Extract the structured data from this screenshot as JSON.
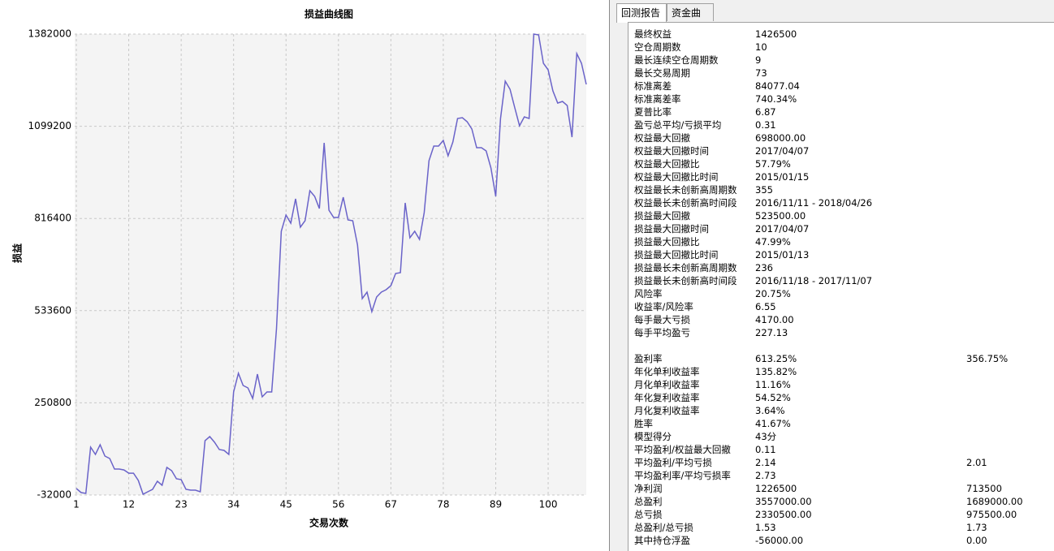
{
  "chart_data": {
    "type": "line",
    "title": "损益曲线图",
    "x_label": "交易次数",
    "y_label": "损益",
    "color": "#6a63c9",
    "grid": true,
    "xlim": [
      1,
      108
    ],
    "xticks": [
      1,
      12,
      23,
      34,
      45,
      56,
      67,
      78,
      89,
      100
    ],
    "ylim": [
      -32000,
      1382000
    ],
    "yticks": [
      -32000,
      250800,
      533600,
      816400,
      1099200,
      1382000
    ],
    "x": [
      1,
      2,
      3,
      4,
      5,
      6,
      7,
      8,
      9,
      10,
      11,
      12,
      13,
      14,
      15,
      16,
      17,
      18,
      19,
      20,
      21,
      22,
      23,
      24,
      25,
      26,
      27,
      28,
      29,
      30,
      31,
      32,
      33,
      34,
      35,
      36,
      37,
      38,
      39,
      40,
      41,
      42,
      43,
      44,
      45,
      46,
      47,
      48,
      49,
      50,
      51,
      52,
      53,
      54,
      55,
      56,
      57,
      58,
      59,
      60,
      61,
      62,
      63,
      64,
      65,
      66,
      67,
      68,
      69,
      70,
      71,
      72,
      73,
      74,
      75,
      76,
      77,
      78,
      79,
      80,
      81,
      82,
      83,
      84,
      85,
      86,
      87,
      88,
      89,
      90,
      91,
      92,
      93,
      94,
      95,
      96,
      97,
      98,
      99,
      100,
      101,
      102,
      103,
      104,
      105,
      106,
      107,
      108
    ],
    "values": [
      -12000,
      -24500,
      -27000,
      115000,
      92500,
      122000,
      87500,
      80000,
      47700,
      47700,
      45000,
      35000,
      35000,
      12800,
      -29500,
      -22000,
      -14600,
      10300,
      -2100,
      52600,
      42700,
      17800,
      15300,
      -14600,
      -17000,
      -17000,
      -22000,
      134800,
      147200,
      129800,
      107400,
      104900,
      92500,
      284100,
      341400,
      304000,
      296600,
      264200,
      338900,
      269200,
      284100,
      284100,
      478300,
      777000,
      826800,
      801900,
      876600,
      789500,
      809400,
      901500,
      884000,
      846700,
      1048400,
      841700,
      819300,
      819300,
      881600,
      811900,
      809400,
      734700,
      570400,
      590400,
      530600,
      575400,
      590400,
      597800,
      610300,
      647600,
      650100,
      864200,
      757100,
      777000,
      752100,
      834300,
      993600,
      1038400,
      1038400,
      1055800,
      1008500,
      1050800,
      1123000,
      1125500,
      1113100,
      1090700,
      1033500,
      1033500,
      1023500,
      971300,
      884000,
      1123000,
      1237500,
      1212700,
      1155500,
      1100700,
      1128100,
      1123000,
      1382000,
      1379500,
      1292400,
      1272400,
      1207700,
      1170400,
      1175400,
      1162900,
      1065800,
      1322300,
      1292400,
      1227700
    ]
  },
  "tabs": [
    "回测报告",
    "资金曲线"
  ],
  "report": {
    "sections": [
      {
        "rows": [
          [
            "最终权益",
            "1426500"
          ],
          [
            "空仓周期数",
            "10"
          ],
          [
            "最长连续空仓周期数",
            "9"
          ],
          [
            "最长交易周期",
            "73"
          ],
          [
            "标准离差",
            "84077.04"
          ],
          [
            "标准离差率",
            "740.34%"
          ],
          [
            "夏普比率",
            "6.87"
          ],
          [
            "盈亏总平均/亏损平均",
            "0.31"
          ],
          [
            "权益最大回撤",
            "698000.00"
          ],
          [
            "权益最大回撤时间",
            "2017/04/07"
          ],
          [
            "权益最大回撤比",
            "57.79%"
          ],
          [
            "权益最大回撤比时间",
            "2015/01/15"
          ],
          [
            "权益最长未创新高周期数",
            "355"
          ],
          [
            "权益最长未创新高时间段",
            "2016/11/11 - 2018/04/26"
          ],
          [
            "损益最大回撤",
            "523500.00"
          ],
          [
            "损益最大回撤时间",
            "2017/04/07"
          ],
          [
            "损益最大回撤比",
            "47.99%"
          ],
          [
            "损益最大回撤比时间",
            "2015/01/13"
          ],
          [
            "损益最长未创新高周期数",
            "236"
          ],
          [
            "损益最长未创新高时间段",
            "2016/11/18 - 2017/11/07"
          ],
          [
            "风险率",
            "20.75%"
          ],
          [
            "收益率/风险率",
            "6.55"
          ],
          [
            "每手最大亏损",
            "4170.00"
          ],
          [
            "每手平均盈亏",
            "227.13"
          ]
        ]
      },
      {
        "rows": [
          [
            "盈利率",
            "613.25%",
            "356.75%"
          ],
          [
            "年化单利收益率",
            "135.82%"
          ],
          [
            "月化单利收益率",
            "11.16%"
          ],
          [
            "年化复利收益率",
            "54.52%"
          ],
          [
            "月化复利收益率",
            "3.64%"
          ],
          [
            "胜率",
            "41.67%"
          ],
          [
            "模型得分",
            "43分"
          ],
          [
            "平均盈利/权益最大回撤",
            "0.11"
          ],
          [
            "平均盈利/平均亏损",
            "2.14",
            "2.01"
          ],
          [
            "平均盈利率/平均亏损率",
            "2.73"
          ],
          [
            "净利润",
            "1226500",
            "713500"
          ],
          [
            "总盈利",
            "3557000.00",
            "1689000.00"
          ],
          [
            "总亏损",
            "2330500.00",
            "975500.00"
          ],
          [
            "总盈利/总亏损",
            "1.53",
            "1.73"
          ],
          [
            "其中持仓浮盈",
            "-56000.00",
            "0.00"
          ]
        ]
      }
    ]
  }
}
